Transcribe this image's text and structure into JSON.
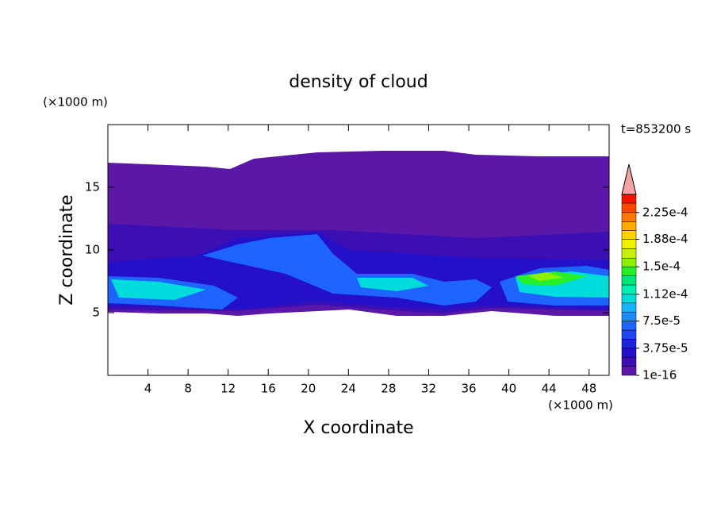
{
  "chart_data": {
    "type": "contour",
    "title": "density of cloud",
    "xlabel": "X coordinate",
    "ylabel": "Z coordinate",
    "xunit": "(×1000 m)",
    "yunit": "(×1000 m)",
    "annotation": "t=853200 s",
    "xlim": [
      0,
      50
    ],
    "ylim": [
      0,
      20
    ],
    "xticks": [
      4,
      8,
      12,
      16,
      20,
      24,
      28,
      32,
      36,
      40,
      44,
      48
    ],
    "yticks": [
      5,
      10,
      15
    ],
    "colorbar": {
      "levels": [
        1e-16,
        1.25e-05,
        2.5e-05,
        3.75e-05,
        5e-05,
        6.25e-05,
        7.5e-05,
        8.75e-05,
        0.0001,
        0.000112,
        0.000125,
        0.000138,
        0.00015,
        0.000162,
        0.000175,
        0.000188,
        0.0002,
        0.000212,
        0.000225,
        0.000238,
        0.00025
      ],
      "colors": [
        "#5b18a8",
        "#3c0fb4",
        "#2410c8",
        "#1a24dc",
        "#1e44ee",
        "#1e64ff",
        "#1e8cff",
        "#14b4ff",
        "#00dcdc",
        "#00f0b4",
        "#00e678",
        "#28f028",
        "#8cf000",
        "#c8f000",
        "#f0f000",
        "#ffd200",
        "#ffaa00",
        "#ff7800",
        "#ff4600",
        "#f01400"
      ],
      "extend_color": "#f4a4a4",
      "ticks": [
        {
          "value": 1e-16,
          "label": "1e-16"
        },
        {
          "value": 3.75e-05,
          "label": "3.75e-5"
        },
        {
          "value": 7.5e-05,
          "label": "7.5e-5"
        },
        {
          "value": 0.000112,
          "label": "1.12e-4"
        },
        {
          "value": 0.00015,
          "label": "1.5e-4"
        },
        {
          "value": 0.000188,
          "label": "1.88e-4"
        },
        {
          "value": 0.000225,
          "label": "2.25e-4"
        }
      ]
    }
  }
}
